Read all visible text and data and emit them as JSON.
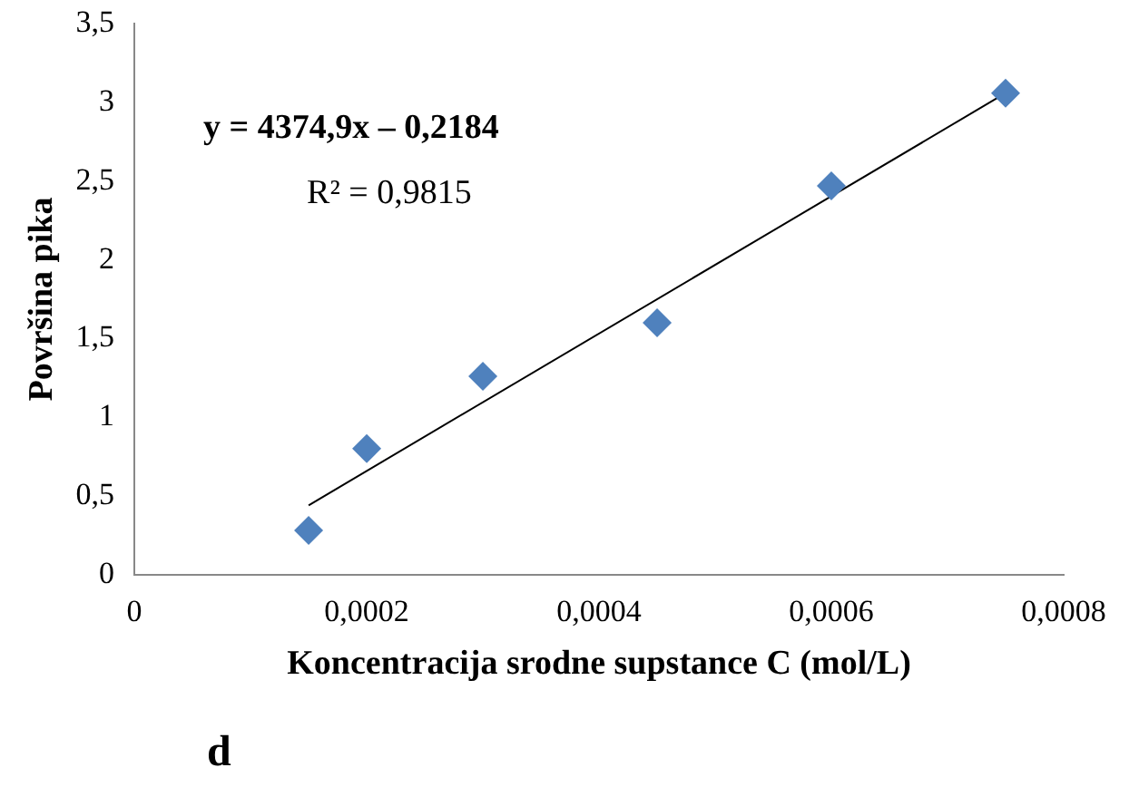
{
  "chart_data": {
    "type": "scatter",
    "xlabel": "Koncentracija srodne supstance C (mol/L)",
    "ylabel": "Površina pika",
    "xlim": [
      0,
      0.0008
    ],
    "xticks": [
      0,
      {
        "value": 0.0002,
        "label": "0,0002"
      },
      {
        "value": 0.0004,
        "label": "0,0004"
      },
      {
        "value": 0.0006,
        "label": "0,0006"
      },
      {
        "value": 0.0008,
        "label": "0,0008"
      }
    ],
    "ylim": [
      0,
      3.5
    ],
    "yticks": [
      0,
      {
        "value": 0.5,
        "label": "0,5"
      },
      1,
      {
        "value": 1.5,
        "label": "1,5"
      },
      2,
      {
        "value": 2.5,
        "label": "2,5"
      },
      3,
      {
        "value": 3.5,
        "label": "3,5"
      }
    ],
    "grid": false,
    "legend": false,
    "marker": "diamond",
    "series": [
      {
        "color": "#4f81bd",
        "x": [
          0.00015,
          0.0002,
          0.0003,
          0.00045,
          0.0006,
          0.00075
        ],
        "values": [
          0.28,
          0.8,
          1.26,
          1.6,
          2.47,
          3.06
        ]
      },
      {
        "type": "line",
        "color": "#000000",
        "marker": "none",
        "x": [
          0.00015,
          0.00075
        ],
        "values": [
          0.44,
          3.06
        ]
      }
    ],
    "annotations": [
      "y = 4374,9x – 0,2184",
      "R² = 0,9815",
      "d"
    ]
  }
}
